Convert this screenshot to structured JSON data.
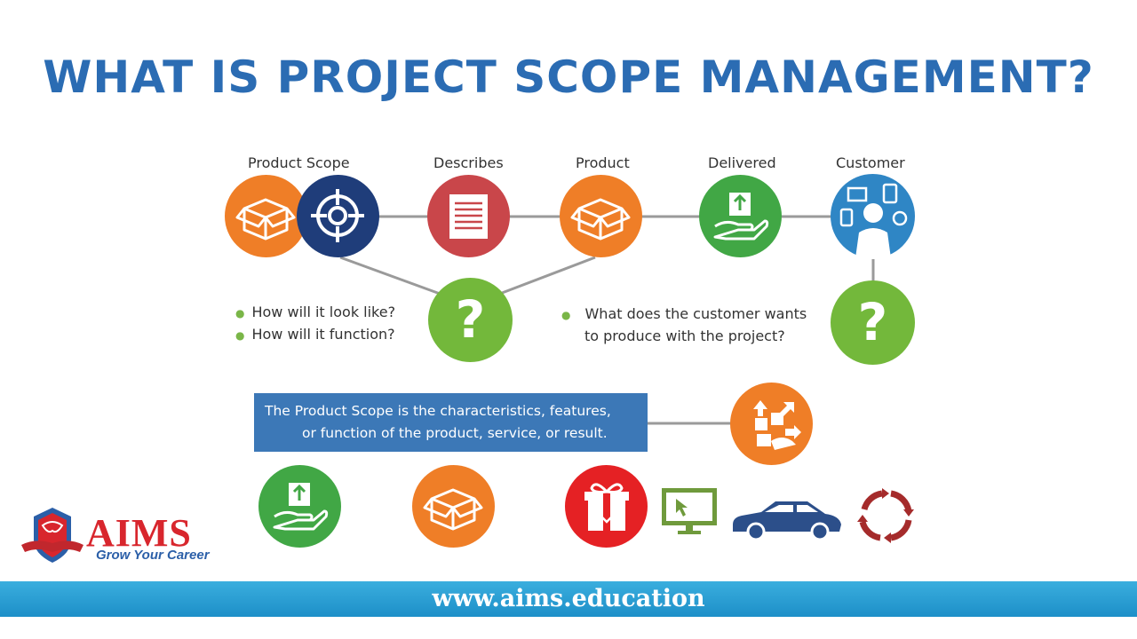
{
  "title": "WHAT IS PROJECT SCOPE MANAGEMENT?",
  "diagram": {
    "labels": {
      "product_scope": "Product Scope",
      "describes": "Describes",
      "product": "Product",
      "delivered": "Delivered",
      "customer": "Customer"
    },
    "left_questions": [
      "How will it look like?",
      "How will it function?"
    ],
    "right_question_line1": "What does the customer wants",
    "right_question_line2": "to produce with the project?",
    "question_mark": "?",
    "definition_line1": "The Product Scope is the characteristics, features,",
    "definition_line2": "or function of the product, service, or result."
  },
  "logo": {
    "name": "AIMS",
    "tagline": "Grow Your Career"
  },
  "footer": {
    "url": "www.aims.education"
  },
  "colors": {
    "title": "#2b6cb3",
    "orange": "#ef7e27",
    "navy": "#1f3d7a",
    "red": "#c9464a",
    "green": "#41a745",
    "blue": "#2f86c5",
    "question_green": "#73b83b",
    "definition_box": "#3c78b7",
    "footer": "#1d8fc8"
  }
}
